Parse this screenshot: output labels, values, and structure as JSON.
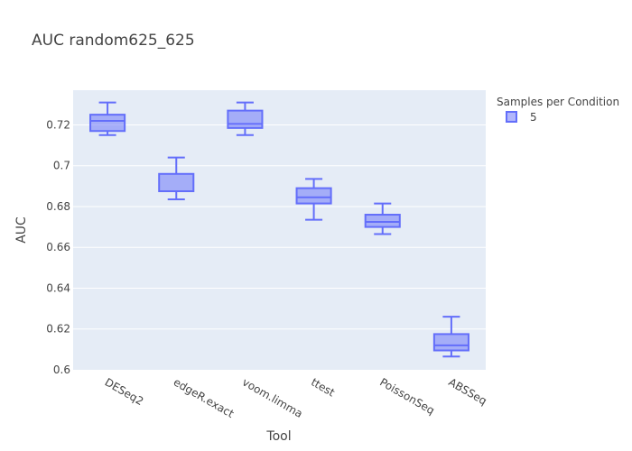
{
  "chart_data": {
    "type": "box",
    "title": "AUC random625_625",
    "xlabel": "Tool",
    "ylabel": "AUC",
    "ylim": [
      0.6,
      0.737
    ],
    "yticks": [
      0.6,
      0.62,
      0.64,
      0.66,
      0.68,
      0.7,
      0.72
    ],
    "ytick_labels": [
      "0.6",
      "0.62",
      "0.64",
      "0.66",
      "0.68",
      "0.7",
      "0.72"
    ],
    "categories": [
      "DESeq2",
      "edgeR.exact",
      "voom.limma",
      "ttest",
      "PoissonSeq",
      "ABSSeq"
    ],
    "legend": {
      "title": "Samples per Condition",
      "placement": "top-right"
    },
    "series": [
      {
        "name": "5",
        "color": "#636efa",
        "fill": "rgba(99,110,250,0.5)",
        "boxes": [
          {
            "min": 0.715,
            "q1": 0.717,
            "median": 0.722,
            "q3": 0.725,
            "max": 0.731
          },
          {
            "min": 0.6835,
            "q1": 0.6875,
            "median": 0.6875,
            "q3": 0.696,
            "max": 0.704
          },
          {
            "min": 0.715,
            "q1": 0.7185,
            "median": 0.7205,
            "q3": 0.727,
            "max": 0.731
          },
          {
            "min": 0.6735,
            "q1": 0.6815,
            "median": 0.6845,
            "q3": 0.689,
            "max": 0.6935
          },
          {
            "min": 0.6665,
            "q1": 0.67,
            "median": 0.6725,
            "q3": 0.676,
            "max": 0.6815
          },
          {
            "min": 0.6065,
            "q1": 0.6095,
            "median": 0.612,
            "q3": 0.6175,
            "max": 0.626
          }
        ]
      }
    ]
  }
}
